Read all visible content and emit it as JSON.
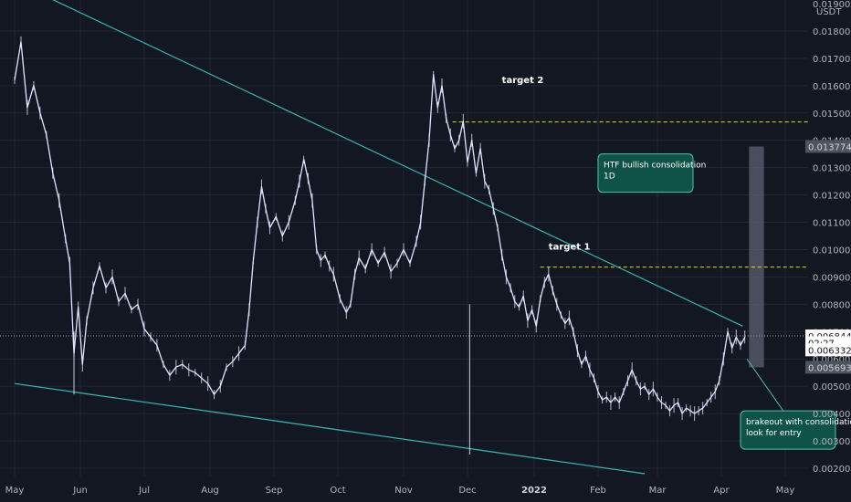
{
  "chart_data": {
    "type": "line",
    "currency": "USDT",
    "x_ticks": [
      "May",
      "Jun",
      "Jul",
      "Aug",
      "Sep",
      "Oct",
      "Nov",
      "Dec",
      "2022",
      "Feb",
      "Mar",
      "Apr",
      "May"
    ],
    "x_ticks_bold": [
      "2022"
    ],
    "y_ticks": [
      "0.019000",
      "0.018000",
      "0.017000",
      "0.016000",
      "0.015000",
      "0.014000",
      "0.013000",
      "0.012000",
      "0.011000",
      "0.010000",
      "0.009000",
      "0.008000",
      "0.007000",
      "0.006000",
      "0.005000",
      "0.004000",
      "0.003000",
      "0.002000"
    ],
    "ylim": [
      0.0018,
      0.0193
    ],
    "x_day_range": [
      0,
      380
    ],
    "series": [
      {
        "points": [
          [
            0,
            0.0162
          ],
          [
            3,
            0.0176
          ],
          [
            6,
            0.0152
          ],
          [
            9,
            0.016
          ],
          [
            12,
            0.015
          ],
          [
            15,
            0.0142
          ],
          [
            18,
            0.0128
          ],
          [
            21,
            0.0118
          ],
          [
            24,
            0.0104
          ],
          [
            26,
            0.0095
          ],
          [
            28,
            0.0062
          ],
          [
            30,
            0.0079
          ],
          [
            32,
            0.0058
          ],
          [
            34,
            0.0074
          ],
          [
            37,
            0.0086
          ],
          [
            40,
            0.0094
          ],
          [
            43,
            0.0086
          ],
          [
            46,
            0.009
          ],
          [
            49,
            0.0081
          ],
          [
            52,
            0.0084
          ],
          [
            55,
            0.0078
          ],
          [
            58,
            0.008
          ],
          [
            61,
            0.0071
          ],
          [
            64,
            0.0068
          ],
          [
            67,
            0.0065
          ],
          [
            70,
            0.0058
          ],
          [
            73,
            0.0054
          ],
          [
            76,
            0.0057
          ],
          [
            79,
            0.0058
          ],
          [
            82,
            0.0056
          ],
          [
            85,
            0.0055
          ],
          [
            88,
            0.0053
          ],
          [
            91,
            0.0051
          ],
          [
            94,
            0.0047
          ],
          [
            97,
            0.005
          ],
          [
            100,
            0.0057
          ],
          [
            103,
            0.0059
          ],
          [
            106,
            0.0062
          ],
          [
            109,
            0.0065
          ],
          [
            111,
            0.0078
          ],
          [
            113,
            0.0096
          ],
          [
            115,
            0.011
          ],
          [
            117,
            0.0123
          ],
          [
            119,
            0.0115
          ],
          [
            121,
            0.0108
          ],
          [
            124,
            0.0112
          ],
          [
            127,
            0.0105
          ],
          [
            130,
            0.011
          ],
          [
            133,
            0.0118
          ],
          [
            135,
            0.0125
          ],
          [
            137,
            0.0133
          ],
          [
            139,
            0.0126
          ],
          [
            141,
            0.0118
          ],
          [
            143,
            0.01
          ],
          [
            145,
            0.0096
          ],
          [
            147,
            0.0098
          ],
          [
            149,
            0.0094
          ],
          [
            151,
            0.0091
          ],
          [
            154,
            0.0082
          ],
          [
            157,
            0.0077
          ],
          [
            159,
            0.008
          ],
          [
            161,
            0.0091
          ],
          [
            163,
            0.0097
          ],
          [
            166,
            0.0093
          ],
          [
            169,
            0.01
          ],
          [
            172,
            0.0095
          ],
          [
            175,
            0.0099
          ],
          [
            178,
            0.0092
          ],
          [
            181,
            0.0095
          ],
          [
            184,
            0.01
          ],
          [
            187,
            0.0095
          ],
          [
            190,
            0.0103
          ],
          [
            192,
            0.011
          ],
          [
            194,
            0.0125
          ],
          [
            196,
            0.014
          ],
          [
            198,
            0.0164
          ],
          [
            200,
            0.0152
          ],
          [
            202,
            0.016
          ],
          [
            204,
            0.0148
          ],
          [
            206,
            0.0142
          ],
          [
            208,
            0.0137
          ],
          [
            210,
            0.014
          ],
          [
            212,
            0.0147
          ],
          [
            214,
            0.0132
          ],
          [
            216,
            0.014
          ],
          [
            218,
            0.0128
          ],
          [
            220,
            0.0137
          ],
          [
            222,
            0.0125
          ],
          [
            224,
            0.0122
          ],
          [
            226,
            0.0115
          ],
          [
            228,
            0.0108
          ],
          [
            230,
            0.0098
          ],
          [
            232,
            0.009
          ],
          [
            234,
            0.0086
          ],
          [
            236,
            0.0081
          ],
          [
            238,
            0.0079
          ],
          [
            240,
            0.0083
          ],
          [
            242,
            0.0074
          ],
          [
            244,
            0.0078
          ],
          [
            246,
            0.0072
          ],
          [
            248,
            0.0082
          ],
          [
            250,
            0.0088
          ],
          [
            252,
            0.0091
          ],
          [
            254,
            0.0085
          ],
          [
            256,
            0.008
          ],
          [
            258,
            0.0076
          ],
          [
            260,
            0.0073
          ],
          [
            262,
            0.0075
          ],
          [
            264,
            0.007
          ],
          [
            266,
            0.0063
          ],
          [
            268,
            0.0058
          ],
          [
            270,
            0.0061
          ],
          [
            272,
            0.0056
          ],
          [
            274,
            0.0053
          ],
          [
            276,
            0.0048
          ],
          [
            278,
            0.0045
          ],
          [
            280,
            0.0046
          ],
          [
            282,
            0.0044
          ],
          [
            284,
            0.0046
          ],
          [
            286,
            0.0044
          ],
          [
            288,
            0.0048
          ],
          [
            290,
            0.0052
          ],
          [
            292,
            0.0056
          ],
          [
            294,
            0.0052
          ],
          [
            296,
            0.0049
          ],
          [
            298,
            0.005
          ],
          [
            300,
            0.0047
          ],
          [
            302,
            0.0049
          ],
          [
            304,
            0.0046
          ],
          [
            306,
            0.0044
          ],
          [
            308,
            0.0043
          ],
          [
            310,
            0.0041
          ],
          [
            312,
            0.0043
          ],
          [
            314,
            0.0044
          ],
          [
            316,
            0.004
          ],
          [
            318,
            0.0042
          ],
          [
            320,
            0.0041
          ],
          [
            322,
            0.004
          ],
          [
            324,
            0.0041
          ],
          [
            326,
            0.0042
          ],
          [
            328,
            0.0044
          ],
          [
            330,
            0.0046
          ],
          [
            332,
            0.0048
          ],
          [
            334,
            0.0052
          ],
          [
            336,
            0.006
          ],
          [
            338,
            0.007
          ],
          [
            340,
            0.0064
          ],
          [
            342,
            0.0068
          ],
          [
            344,
            0.0065
          ],
          [
            346,
            0.0068
          ]
        ]
      }
    ],
    "wicks": [
      {
        "day": 28,
        "low": 0.0047,
        "high": 0.007
      },
      {
        "day": 215,
        "low": 0.0025,
        "high": 0.008
      }
    ],
    "trendlines": [
      {
        "name": "descending-resistance",
        "from": [
          -30,
          0.022
        ],
        "to": [
          345,
          0.0072
        ]
      },
      {
        "name": "ascending-support",
        "from": [
          0,
          0.0051
        ],
        "to": [
          298,
          0.0018
        ]
      }
    ],
    "levels": [
      {
        "name": "target 2",
        "value": 0.01467,
        "from_day": 207,
        "to_day": 380
      },
      {
        "name": "target 1",
        "value": 0.00936,
        "from_day": 248,
        "to_day": 380
      }
    ],
    "current_price": 0.006844,
    "projection_box": {
      "from_day": 348,
      "to_day": 355,
      "low": 0.005693,
      "high": 0.013774
    },
    "annotations": [
      {
        "text_lines": [
          "target 2"
        ],
        "x_day": 230,
        "y_value": 0.0161
      },
      {
        "text_lines": [
          "target 1"
        ],
        "x_day": 252,
        "y_value": 0.01
      }
    ],
    "callouts": [
      {
        "lines": [
          "HTF bullish consolidation",
          "1D"
        ],
        "box_day": 276,
        "box_y_value": 0.0135,
        "pointer_to": [
          295,
          0.0122
        ]
      },
      {
        "lines": [
          "brakeout with consolidatio",
          "look for entry"
        ],
        "box_day": 344,
        "box_y_value": 0.0041,
        "pointer_to": [
          347,
          0.006
        ]
      }
    ],
    "price_tags": [
      {
        "label": "0.013774",
        "value": 0.013774,
        "style": "gray"
      },
      {
        "label": "0.006844",
        "value": 0.006844,
        "style": "white"
      },
      {
        "label": "02:27",
        "value": 0.006592,
        "style": "white"
      },
      {
        "label": "0.006332",
        "value": 0.006332,
        "style": "white"
      },
      {
        "label": "0.005693",
        "value": 0.005693,
        "style": "gray"
      }
    ],
    "colors": {
      "background": "#131722",
      "grid": "#232632",
      "price": "#dfe6ff",
      "trendline": "#3bb9b4",
      "target_line": "#e4e200",
      "callout_fill": "#0e5248",
      "callout_border": "#4fc1ad",
      "box": "#5d6170",
      "axis_text": "#b2b5be"
    },
    "grid": true
  }
}
